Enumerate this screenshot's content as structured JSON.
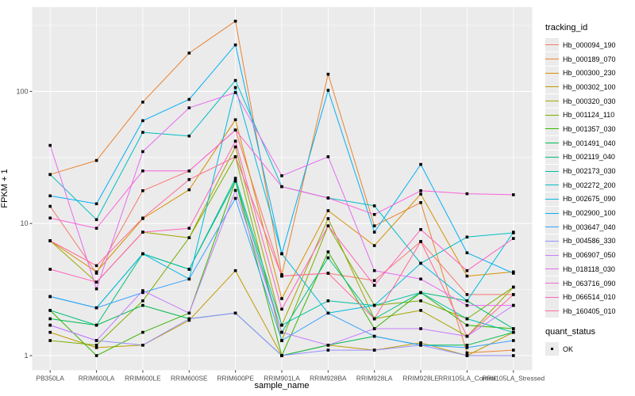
{
  "chart_data": {
    "type": "line",
    "title": "",
    "xlabel": "sample_name",
    "ylabel": "FPKM + 1",
    "y_scale": "log10",
    "y_ticks": [
      1,
      10,
      100
    ],
    "y_minor_ticks": [
      3.162,
      31.62,
      316.2
    ],
    "ylim": [
      0.77,
      437
    ],
    "grid": true,
    "legend_position": "right",
    "point_marker": "black-square",
    "categories": [
      "PB350LA",
      "RRIM600LA",
      "RRIM600LE",
      "RRIM600SE",
      "RRIM600PE",
      "RRIM901LA",
      "RRIM928BA",
      "RRIM928LA",
      "RRIM928LE",
      "RRII105LA_Control",
      "RRII105LA_Stressed"
    ],
    "series": [
      {
        "name": "Hb_000094_190",
        "color": "#F8766D",
        "values": [
          13.5,
          4.2,
          17.7,
          25,
          51,
          4.0,
          4.2,
          3.7,
          7.3,
          2.9,
          2.9
        ]
      },
      {
        "name": "Hb_000189_070",
        "color": "#EA8331",
        "values": [
          23.5,
          30,
          83,
          195,
          340,
          4.1,
          135,
          9.6,
          14.4,
          1.05,
          1.1
        ]
      },
      {
        "name": "Hb_000300_230",
        "color": "#D89000",
        "values": [
          7.4,
          4.3,
          10.9,
          18,
          61,
          2.7,
          12.5,
          6.8,
          16.7,
          4.0,
          4.3
        ]
      },
      {
        "name": "Hb_000302_100",
        "color": "#C09B00",
        "values": [
          1.5,
          1.15,
          1.2,
          1.85,
          4.4,
          1.0,
          1.2,
          1.1,
          1.25,
          1.0,
          1.5
        ]
      },
      {
        "name": "Hb_000320_030",
        "color": "#A3A500",
        "values": [
          7.4,
          3.6,
          8.6,
          7.8,
          38,
          1.7,
          10.9,
          1.9,
          2.2,
          1.4,
          3.3
        ]
      },
      {
        "name": "Hb_001124_110",
        "color": "#7CAE00",
        "values": [
          1.3,
          1.2,
          2.6,
          7.8,
          32,
          1.3,
          9.6,
          2.4,
          2.6,
          1.9,
          3.3
        ]
      },
      {
        "name": "Hb_001357_030",
        "color": "#39B600",
        "values": [
          2.2,
          1.0,
          1.5,
          2.1,
          21,
          1.0,
          6.1,
          1.6,
          3.0,
          1.7,
          1.6
        ]
      },
      {
        "name": "Hb_001491_040",
        "color": "#00BB4E",
        "values": [
          1.9,
          1.7,
          2.4,
          1.9,
          2.1,
          1.0,
          1.2,
          1.4,
          1.2,
          1.2,
          1.5
        ]
      },
      {
        "name": "Hb_002119_040",
        "color": "#00BF7D",
        "values": [
          2.2,
          1.7,
          5.9,
          4.5,
          21,
          1.5,
          5.5,
          1.9,
          3.0,
          2.6,
          1.6
        ]
      },
      {
        "name": "Hb_002173_030",
        "color": "#00C1A3",
        "values": [
          2.8,
          2.3,
          5.9,
          4.5,
          22,
          1.7,
          2.6,
          2.4,
          3.0,
          1.9,
          1.5
        ]
      },
      {
        "name": "Hb_002272_200",
        "color": "#00BFC4",
        "values": [
          23.5,
          10.7,
          49,
          46,
          121,
          19,
          15.6,
          13.6,
          5.0,
          7.9,
          8.5
        ]
      },
      {
        "name": "Hb_002675_090",
        "color": "#00BAE0",
        "values": [
          2.8,
          2.3,
          5.9,
          3.8,
          107,
          5.9,
          2.1,
          2.4,
          5.0,
          2.6,
          8.6
        ]
      },
      {
        "name": "Hb_002900_100",
        "color": "#00B0F6",
        "values": [
          16.2,
          14.1,
          60,
          87,
          225,
          5.9,
          102,
          8.6,
          28,
          6.0,
          4.2
        ]
      },
      {
        "name": "Hb_003647_040",
        "color": "#35A2FF",
        "values": [
          2.8,
          2.3,
          3.0,
          3.8,
          15.5,
          1.3,
          2.1,
          1.4,
          1.2,
          1.15,
          1.3
        ]
      },
      {
        "name": "Hb_004586_330",
        "color": "#9590FF",
        "values": [
          1.7,
          1.3,
          1.2,
          1.9,
          2.1,
          1.0,
          1.1,
          1.1,
          1.2,
          1.0,
          1.0
        ]
      },
      {
        "name": "Hb_006907_050",
        "color": "#C77CFF",
        "values": [
          1.7,
          1.3,
          3.1,
          2.1,
          17.8,
          1.5,
          1.2,
          1.6,
          1.6,
          1.4,
          2.4
        ]
      },
      {
        "name": "Hb_018118_030",
        "color": "#E76BF3",
        "values": [
          39,
          3.2,
          35,
          75,
          98,
          23,
          32,
          4.4,
          3.8,
          2.4,
          2.4
        ]
      },
      {
        "name": "Hb_063716_090",
        "color": "#FA62DB",
        "values": [
          11,
          9.2,
          25,
          25,
          51,
          19,
          15.6,
          11.7,
          17.7,
          16.8,
          16.5
        ]
      },
      {
        "name": "Hb_066514_010",
        "color": "#FF62BC",
        "values": [
          4.5,
          3.6,
          8.6,
          9.2,
          42,
          2.25,
          9.6,
          3.4,
          9.0,
          4.4,
          7.7
        ]
      },
      {
        "name": "Hb_160405_010",
        "color": "#FF6A98",
        "values": [
          7.4,
          4.8,
          11,
          21.5,
          32,
          4.0,
          4.2,
          1.9,
          7.3,
          1.4,
          2.9
        ]
      }
    ]
  },
  "axes": {
    "x_title": "sample_name",
    "y_title": "FPKM + 1",
    "y_tick_labels": [
      "1",
      "10",
      "100"
    ]
  },
  "legend": {
    "tracking_title": "tracking_id",
    "quant_title": "quant_status",
    "quant_ok_label": "OK"
  },
  "colors": {
    "panel_bg": "#EBEBEB",
    "gridline": "#FFFFFF",
    "tick_label": "#4D4D4D",
    "tick_mark": "#333333",
    "marker": "#000000"
  }
}
